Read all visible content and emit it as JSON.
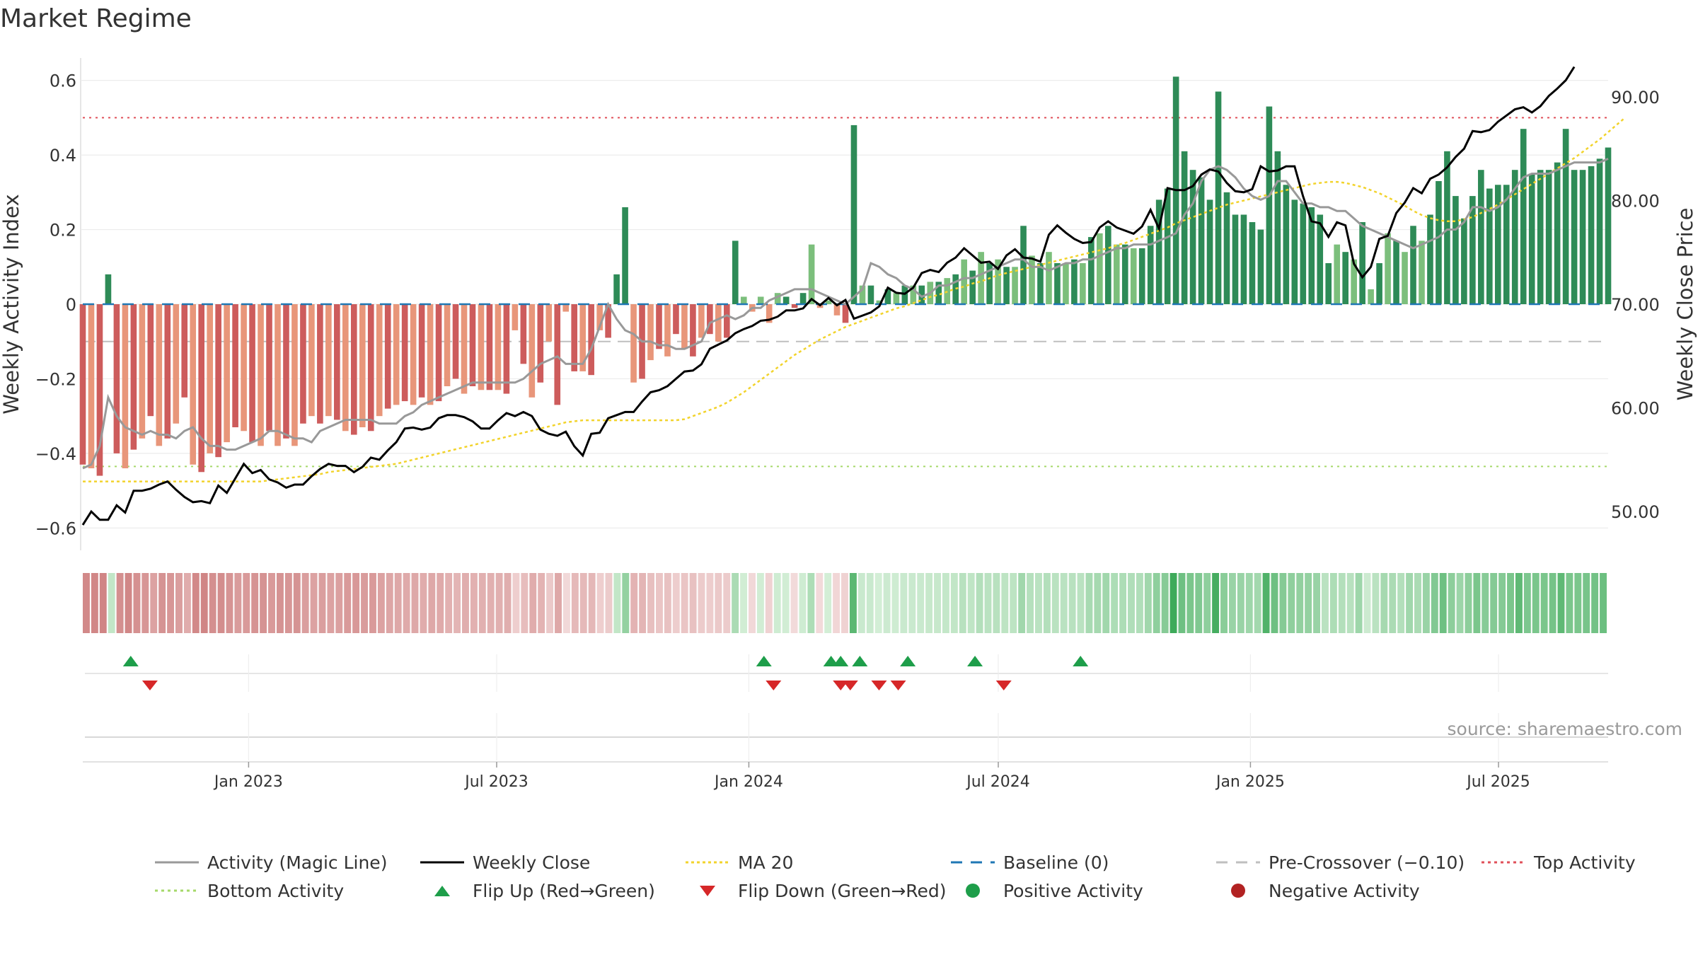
{
  "chart_data": {
    "type": "bar",
    "title": "Market Regime",
    "ylabel_left": "Weekly Activity Index",
    "ylabel_right": "Weekly Close Price",
    "source": "source: sharemaestro.com",
    "x_range": [
      "2022-09-02",
      "2025-09-19"
    ],
    "y_left_ticks": [
      0.6,
      0.4,
      0.2,
      0,
      -0.2,
      -0.4,
      -0.6
    ],
    "y_left_tick_labels": [
      "0.6",
      "0.4",
      "0.2",
      "0",
      "−0.2",
      "−0.4",
      "−0.6"
    ],
    "ylim_left": [
      -0.66,
      0.66
    ],
    "y_right_ticks": [
      90,
      80,
      70,
      60,
      50
    ],
    "y_right_tick_labels": [
      "90.00",
      "80.00",
      "70.00",
      "60.00",
      "50.00"
    ],
    "ylim_right": [
      46.25,
      93.75
    ],
    "x_ticks": [
      {
        "date": "2023-01-01",
        "label": "Jan 2023"
      },
      {
        "date": "2023-07-01",
        "label": "Jul 2023"
      },
      {
        "date": "2024-01-01",
        "label": "Jan 2024"
      },
      {
        "date": "2024-07-01",
        "label": "Jul 2024"
      },
      {
        "date": "2025-01-01",
        "label": "Jan 2025"
      },
      {
        "date": "2025-07-01",
        "label": "Jul 2025"
      }
    ],
    "reference_lines": {
      "baseline": 0,
      "pre_crossover": -0.1,
      "top_activity": 0.5,
      "bottom_activity": -0.435
    },
    "colors": {
      "neg_dark": "#cd5c5c",
      "neg_light": "#e8967a",
      "pos_dark": "#2e8b57",
      "pos_light": "#7cbf7c",
      "magic": "#999999",
      "close": "#000000",
      "ma20": "#f2d32c",
      "baseline": "#1f77b4",
      "pre": "#bfbfbf",
      "top": "#e0505a",
      "bottom": "#a6d96a",
      "flip_up": "#1e9e4a",
      "flip_down": "#d62728",
      "pos_dot": "#1e9e4a",
      "neg_dot": "#b22222"
    },
    "series": [
      {
        "name": "Activity (Magic Line)",
        "values": [
          -0.44,
          -0.43,
          -0.38,
          -0.25,
          -0.3,
          -0.33,
          -0.34,
          -0.35,
          -0.34,
          -0.35,
          -0.35,
          -0.36,
          -0.34,
          -0.33,
          -0.36,
          -0.38,
          -0.38,
          -0.39,
          -0.39,
          -0.38,
          -0.37,
          -0.36,
          -0.34,
          -0.34,
          -0.35,
          -0.36,
          -0.36,
          -0.37,
          -0.34,
          -0.33,
          -0.32,
          -0.31,
          -0.31,
          -0.31,
          -0.31,
          -0.32,
          -0.32,
          -0.32,
          -0.3,
          -0.29,
          -0.27,
          -0.26,
          -0.25,
          -0.24,
          -0.23,
          -0.22,
          -0.21,
          -0.21,
          -0.21,
          -0.21,
          -0.21,
          -0.21,
          -0.2,
          -0.18,
          -0.16,
          -0.15,
          -0.14,
          -0.16,
          -0.16,
          -0.16,
          -0.12,
          -0.06,
          0.0,
          -0.04,
          -0.07,
          -0.08,
          -0.1,
          -0.1,
          -0.11,
          -0.11,
          -0.12,
          -0.12,
          -0.11,
          -0.1,
          -0.05,
          -0.04,
          -0.03,
          -0.04,
          -0.03,
          -0.01,
          -0.01,
          0.01,
          0.02,
          0.03,
          0.04,
          0.04,
          0.04,
          0.03,
          0.02,
          0.01,
          0.0,
          0.02,
          0.04,
          0.11,
          0.1,
          0.08,
          0.07,
          0.05,
          0.04,
          0.02,
          0.03,
          0.05,
          0.05,
          0.06,
          0.07,
          0.07,
          0.08,
          0.09,
          0.1,
          0.11,
          0.12,
          0.12,
          0.1,
          0.1,
          0.09,
          0.1,
          0.11,
          0.11,
          0.12,
          0.12,
          0.13,
          0.14,
          0.15,
          0.15,
          0.16,
          0.16,
          0.16,
          0.17,
          0.18,
          0.19,
          0.24,
          0.27,
          0.33,
          0.36,
          0.37,
          0.36,
          0.34,
          0.31,
          0.29,
          0.28,
          0.29,
          0.33,
          0.33,
          0.3,
          0.27,
          0.27,
          0.26,
          0.26,
          0.25,
          0.25,
          0.23,
          0.21,
          0.2,
          0.19,
          0.18,
          0.17,
          0.16,
          0.15,
          0.16,
          0.17,
          0.18,
          0.2,
          0.2,
          0.22,
          0.26,
          0.26,
          0.25,
          0.26,
          0.28,
          0.31,
          0.34,
          0.35,
          0.35,
          0.35,
          0.36,
          0.37,
          0.38,
          0.38,
          0.38,
          0.38,
          0.39
        ]
      },
      {
        "name": "Weekly Close",
        "values": [
          48.7,
          50.0,
          49.2,
          49.2,
          50.6,
          49.9,
          52.0,
          52.0,
          52.2,
          52.6,
          52.9,
          52.1,
          51.4,
          50.9,
          51.0,
          50.8,
          52.5,
          51.8,
          53.2,
          54.6,
          53.7,
          54.0,
          53.1,
          52.8,
          52.3,
          52.6,
          52.6,
          53.4,
          54.1,
          54.6,
          54.4,
          54.4,
          53.8,
          54.3,
          55.2,
          55.0,
          55.9,
          56.7,
          58.0,
          58.1,
          57.9,
          58.1,
          59.0,
          59.3,
          59.3,
          59.1,
          58.7,
          58.0,
          58.0,
          58.8,
          59.5,
          59.2,
          59.6,
          59.2,
          57.9,
          57.5,
          57.3,
          57.7,
          56.3,
          55.4,
          57.5,
          57.6,
          59.0,
          59.3,
          59.6,
          59.6,
          60.6,
          61.5,
          61.7,
          62.1,
          62.8,
          63.5,
          63.6,
          64.2,
          65.7,
          66.1,
          66.5,
          67.2,
          67.6,
          67.9,
          68.4,
          68.5,
          68.8,
          69.4,
          69.4,
          69.6,
          70.5,
          69.9,
          70.6,
          69.9,
          70.4,
          68.6,
          68.9,
          69.2,
          69.8,
          71.6,
          71.1,
          71.0,
          71.6,
          73.0,
          73.3,
          73.1,
          74.0,
          74.5,
          75.4,
          74.7,
          74.0,
          74.1,
          73.4,
          74.7,
          75.3,
          74.5,
          74.4,
          74.1,
          76.7,
          77.6,
          76.9,
          76.3,
          75.9,
          76.0,
          77.4,
          78.0,
          77.4,
          77.1,
          76.8,
          77.5,
          79.1,
          77.3,
          81.2,
          81.0,
          81.0,
          81.4,
          82.5,
          83.0,
          82.8,
          81.7,
          80.9,
          80.8,
          81.1,
          83.3,
          82.8,
          82.9,
          83.3,
          83.3,
          80.4,
          78.0,
          77.8,
          76.5,
          77.9,
          77.6,
          73.9,
          72.6,
          73.6,
          76.3,
          76.6,
          78.8,
          79.8,
          81.2,
          80.7,
          82.1,
          82.5,
          83.2,
          84.2,
          85.0,
          86.7,
          86.6,
          86.8,
          87.6,
          88.2,
          88.8,
          89.0,
          88.5,
          89.1,
          90.1,
          90.8,
          91.6,
          92.9
        ]
      },
      {
        "name": "MA 20",
        "values": [
          52.9,
          52.9,
          52.9,
          52.9,
          52.9,
          52.9,
          52.9,
          52.9,
          52.9,
          52.9,
          52.9,
          52.9,
          52.9,
          52.9,
          52.9,
          52.9,
          52.9,
          52.9,
          52.9,
          52.9,
          52.9,
          52.9,
          53.0,
          53.1,
          53.2,
          53.3,
          53.4,
          53.5,
          53.6,
          53.8,
          53.9,
          54.0,
          54.1,
          54.2,
          54.3,
          54.4,
          54.5,
          54.6,
          54.8,
          55.0,
          55.2,
          55.4,
          55.6,
          55.8,
          56.0,
          56.2,
          56.4,
          56.6,
          56.8,
          57.0,
          57.2,
          57.4,
          57.6,
          57.8,
          58.0,
          58.2,
          58.4,
          58.6,
          58.7,
          58.8,
          58.8,
          58.8,
          58.8,
          58.8,
          58.8,
          58.8,
          58.8,
          58.8,
          58.8,
          58.8,
          58.8,
          58.9,
          59.2,
          59.5,
          59.8,
          60.1,
          60.5,
          61.0,
          61.5,
          62.1,
          62.7,
          63.3,
          63.9,
          64.5,
          65.1,
          65.6,
          66.1,
          66.6,
          67.0,
          67.4,
          67.8,
          68.1,
          68.4,
          68.7,
          69.0,
          69.3,
          69.6,
          69.8,
          70.1,
          70.4,
          70.7,
          70.9,
          71.2,
          71.5,
          71.7,
          72.0,
          72.2,
          72.5,
          72.8,
          73.0,
          73.2,
          73.4,
          73.6,
          73.8,
          74.0,
          74.2,
          74.4,
          74.6,
          74.8,
          75.0,
          75.2,
          75.4,
          75.7,
          75.9,
          76.2,
          76.5,
          76.8,
          77.1,
          77.4,
          77.8,
          78.1,
          78.4,
          78.7,
          79.0,
          79.3,
          79.6,
          79.8,
          80.0,
          80.2,
          80.4,
          80.6,
          80.8,
          81.0,
          81.2,
          81.4,
          81.6,
          81.7,
          81.8,
          81.8,
          81.7,
          81.5,
          81.3,
          81.0,
          80.7,
          80.3,
          79.9,
          79.5,
          79.0,
          78.6,
          78.3,
          78.1,
          78.0,
          78.0,
          78.2,
          78.4,
          78.8,
          79.2,
          79.6,
          80.1,
          80.6,
          81.1,
          81.6,
          82.1,
          82.6,
          83.1,
          83.6,
          84.1,
          84.7,
          85.3,
          85.9,
          86.6,
          87.3,
          88.0
        ]
      }
    ],
    "activity_bars": [
      -0.43,
      -0.44,
      -0.46,
      0.08,
      -0.4,
      -0.44,
      -0.39,
      -0.36,
      -0.3,
      -0.38,
      -0.36,
      -0.32,
      -0.25,
      -0.43,
      -0.45,
      -0.4,
      -0.41,
      -0.37,
      -0.33,
      -0.34,
      -0.37,
      -0.38,
      -0.34,
      -0.38,
      -0.36,
      -0.38,
      -0.32,
      -0.3,
      -0.32,
      -0.3,
      -0.31,
      -0.34,
      -0.35,
      -0.33,
      -0.34,
      -0.3,
      -0.28,
      -0.27,
      -0.26,
      -0.27,
      -0.25,
      -0.27,
      -0.26,
      -0.22,
      -0.2,
      -0.24,
      -0.22,
      -0.23,
      -0.23,
      -0.23,
      -0.24,
      -0.07,
      -0.16,
      -0.25,
      -0.21,
      -0.1,
      -0.27,
      -0.02,
      -0.18,
      -0.18,
      -0.19,
      -0.07,
      -0.09,
      0.08,
      0.26,
      -0.21,
      -0.2,
      -0.15,
      -0.12,
      -0.14,
      -0.08,
      -0.12,
      -0.14,
      -0.09,
      -0.08,
      -0.1,
      -0.09,
      0.17,
      0.02,
      -0.02,
      0.02,
      -0.05,
      0.03,
      0.02,
      -0.01,
      0.03,
      0.16,
      -0.01,
      0.01,
      -0.03,
      -0.05,
      0.48,
      0.05,
      0.05,
      0.01,
      0.04,
      0.03,
      0.05,
      0.05,
      0.05,
      0.06,
      0.06,
      0.07,
      0.08,
      0.12,
      0.09,
      0.14,
      0.11,
      0.12,
      0.1,
      0.1,
      0.21,
      0.13,
      0.11,
      0.14,
      0.11,
      0.11,
      0.12,
      0.11,
      0.18,
      0.19,
      0.21,
      0.16,
      0.16,
      0.15,
      0.15,
      0.21,
      0.28,
      0.31,
      0.61,
      0.41,
      0.36,
      0.34,
      0.28,
      0.57,
      0.3,
      0.24,
      0.24,
      0.22,
      0.2,
      0.53,
      0.41,
      0.32,
      0.28,
      0.27,
      0.26,
      0.24,
      0.11,
      0.16,
      0.14,
      0.12,
      0.22,
      0.04,
      0.11,
      0.19,
      0.17,
      0.14,
      0.21,
      0.17,
      0.24,
      0.33,
      0.41,
      0.29,
      0.23,
      0.29,
      0.36,
      0.31,
      0.32,
      0.32,
      0.36,
      0.47,
      0.35,
      0.36,
      0.36,
      0.38,
      0.47,
      0.36,
      0.36,
      0.37,
      0.39,
      0.42
    ],
    "flip_up_dates": [
      "2022-10-07",
      "2024-01-12",
      "2024-03-01",
      "2024-03-08",
      "2024-03-22",
      "2024-04-26",
      "2024-06-14",
      "2024-08-30"
    ],
    "flip_down_dates": [
      "2022-10-21",
      "2024-01-19",
      "2024-03-08",
      "2024-03-15",
      "2024-04-05",
      "2024-04-19",
      "2024-07-05"
    ],
    "legend": [
      {
        "label": "Activity (Magic Line)",
        "symbol": "line-gray"
      },
      {
        "label": "Weekly Close",
        "symbol": "line-black"
      },
      {
        "label": "MA 20",
        "symbol": "dotted-yellow"
      },
      {
        "label": "Baseline (0)",
        "symbol": "dashed-blue"
      },
      {
        "label": "Pre-Crossover (−0.10)",
        "symbol": "dashed-gray"
      },
      {
        "label": "Top Activity",
        "symbol": "dotted-red"
      },
      {
        "label": "Bottom Activity",
        "symbol": "dotted-green"
      },
      {
        "label": "Flip Up (Red→Green)",
        "symbol": "triangle-up-green"
      },
      {
        "label": "Flip Down (Green→Red)",
        "symbol": "triangle-down-red"
      },
      {
        "label": "Positive Activity",
        "symbol": "dot-green"
      },
      {
        "label": "Negative Activity",
        "symbol": "dot-red"
      }
    ]
  }
}
